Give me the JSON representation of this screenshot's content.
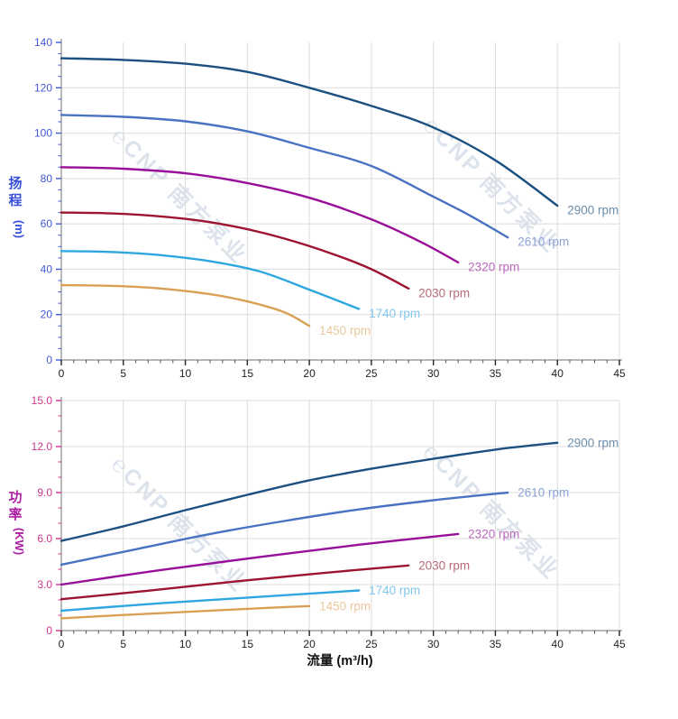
{
  "style": {
    "grid_color": "#dcdcdc",
    "axis_line_color": "#8a8a8a",
    "x_tick_color": "#222222",
    "x_label_color": "#222222",
    "background": "#ffffff"
  },
  "watermark": {
    "text": "℮CNP 南方泵业",
    "color": "rgba(178,192,212,0.45)"
  },
  "chart_data": [
    {
      "id": "head-chart",
      "type": "line",
      "title": "",
      "ylabel": "扬程",
      "ylabel_unit": "(m)",
      "xlabel": "",
      "ylim": [
        0,
        140
      ],
      "xlim": [
        0,
        45
      ],
      "ytick_values": [
        0,
        20,
        40,
        60,
        80,
        100,
        120,
        140
      ],
      "ytick_labels": [
        "0",
        "20",
        "40",
        "60",
        "80",
        "100",
        "120",
        "140"
      ],
      "yminor_step": 5,
      "xtick_values": [
        0,
        5,
        10,
        15,
        20,
        25,
        30,
        35,
        40,
        45
      ],
      "xtick_labels": [
        "0",
        "5",
        "10",
        "15",
        "20",
        "25",
        "30",
        "35",
        "40",
        "45"
      ],
      "xminor_step": 1,
      "grid": true,
      "axis_tick_color": "#4257d8",
      "axis_title_color": "#3a4fd8",
      "legend_position": "inline-right",
      "series": [
        {
          "name": "2900 rpm",
          "color": "#1b5080",
          "label_color": "#6c8cab",
          "points": [
            [
              0,
              133
            ],
            [
              5,
              132.3
            ],
            [
              10,
              130.6
            ],
            [
              15,
              127
            ],
            [
              20,
              120
            ],
            [
              25,
              112
            ],
            [
              30,
              102.5
            ],
            [
              35,
              88
            ],
            [
              40,
              68
            ]
          ]
        },
        {
          "name": "2610 rpm",
          "color": "#4a72c2",
          "label_color": "#8aa3d6",
          "points": [
            [
              0,
              108
            ],
            [
              5,
              107.2
            ],
            [
              10,
              105.2
            ],
            [
              15,
              100.8
            ],
            [
              20,
              93.5
            ],
            [
              25,
              85.5
            ],
            [
              30,
              72
            ],
            [
              33,
              63.5
            ],
            [
              36,
              54
            ]
          ]
        },
        {
          "name": "2320 rpm",
          "color": "#990f99",
          "label_color": "#bb6abb",
          "points": [
            [
              0,
              85
            ],
            [
              5,
              84.3
            ],
            [
              10,
              82.3
            ],
            [
              15,
              78
            ],
            [
              20,
              71.5
            ],
            [
              25,
              62
            ],
            [
              29,
              52
            ],
            [
              32,
              43
            ]
          ]
        },
        {
          "name": "2030 rpm",
          "color": "#9e1430",
          "label_color": "#b56a77",
          "points": [
            [
              0,
              65
            ],
            [
              5,
              64.4
            ],
            [
              10,
              62.2
            ],
            [
              14,
              58.8
            ],
            [
              18,
              53.5
            ],
            [
              22,
              46.5
            ],
            [
              25,
              40
            ],
            [
              28,
              31.5
            ]
          ]
        },
        {
          "name": "1740 rpm",
          "color": "#2ea7e0",
          "label_color": "#84c7ec",
          "points": [
            [
              0,
              48
            ],
            [
              4,
              47.6
            ],
            [
              8,
              46.2
            ],
            [
              12,
              43.5
            ],
            [
              16,
              39
            ],
            [
              20,
              31
            ],
            [
              24,
              22.5
            ]
          ]
        },
        {
          "name": "1450 rpm",
          "color": "#d9a055",
          "label_color": "#e9c89c",
          "points": [
            [
              0,
              33
            ],
            [
              4,
              32.7
            ],
            [
              8,
              31.5
            ],
            [
              12,
              29
            ],
            [
              15,
              25.8
            ],
            [
              18,
              21
            ],
            [
              20,
              15
            ]
          ]
        }
      ]
    },
    {
      "id": "power-chart",
      "type": "line",
      "title": "",
      "ylabel": "功率",
      "ylabel_unit": "(KW)",
      "xlabel": "流量 (m³/h)",
      "ylim": [
        0,
        15
      ],
      "xlim": [
        0,
        45
      ],
      "ytick_values": [
        0,
        3,
        6,
        9,
        12,
        15
      ],
      "ytick_labels": [
        "0",
        "3.0",
        "6.0",
        "9.0",
        "12.0",
        "15.0"
      ],
      "yminor_step": 1,
      "xtick_values": [
        0,
        5,
        10,
        15,
        20,
        25,
        30,
        35,
        40,
        45
      ],
      "xtick_labels": [
        "0",
        "5",
        "10",
        "15",
        "20",
        "25",
        "30",
        "35",
        "40",
        "45"
      ],
      "xminor_step": 1,
      "grid": true,
      "axis_tick_color": "#d0338d",
      "axis_title_color": "#ad1fa3",
      "legend_position": "inline-right",
      "series": [
        {
          "name": "2900 rpm",
          "color": "#1b5080",
          "label_color": "#6c8cab",
          "points": [
            [
              0,
              5.85
            ],
            [
              5,
              6.8
            ],
            [
              10,
              7.85
            ],
            [
              15,
              8.85
            ],
            [
              20,
              9.8
            ],
            [
              25,
              10.55
            ],
            [
              30,
              11.2
            ],
            [
              35,
              11.8
            ],
            [
              40,
              12.25
            ]
          ]
        },
        {
          "name": "2610 rpm",
          "color": "#4a72c2",
          "label_color": "#8aa3d6",
          "points": [
            [
              0,
              4.3
            ],
            [
              6,
              5.3
            ],
            [
              12,
              6.3
            ],
            [
              18,
              7.15
            ],
            [
              24,
              7.9
            ],
            [
              30,
              8.5
            ],
            [
              36,
              9.0
            ]
          ]
        },
        {
          "name": "2320 rpm",
          "color": "#990f99",
          "label_color": "#bb6abb",
          "points": [
            [
              0,
              3.0
            ],
            [
              8,
              3.95
            ],
            [
              16,
              4.8
            ],
            [
              24,
              5.6
            ],
            [
              32,
              6.3
            ]
          ]
        },
        {
          "name": "2030 rpm",
          "color": "#9e1430",
          "label_color": "#b56a77",
          "points": [
            [
              0,
              2.05
            ],
            [
              7,
              2.6
            ],
            [
              14,
              3.2
            ],
            [
              21,
              3.75
            ],
            [
              28,
              4.25
            ]
          ]
        },
        {
          "name": "1740 rpm",
          "color": "#2ea7e0",
          "label_color": "#84c7ec",
          "points": [
            [
              0,
              1.3
            ],
            [
              8,
              1.78
            ],
            [
              16,
              2.2
            ],
            [
              24,
              2.62
            ]
          ]
        },
        {
          "name": "1450 rpm",
          "color": "#d9a055",
          "label_color": "#e9c89c",
          "points": [
            [
              0,
              0.8
            ],
            [
              5,
              1.02
            ],
            [
              10,
              1.22
            ],
            [
              15,
              1.42
            ],
            [
              20,
              1.6
            ]
          ]
        }
      ]
    }
  ]
}
